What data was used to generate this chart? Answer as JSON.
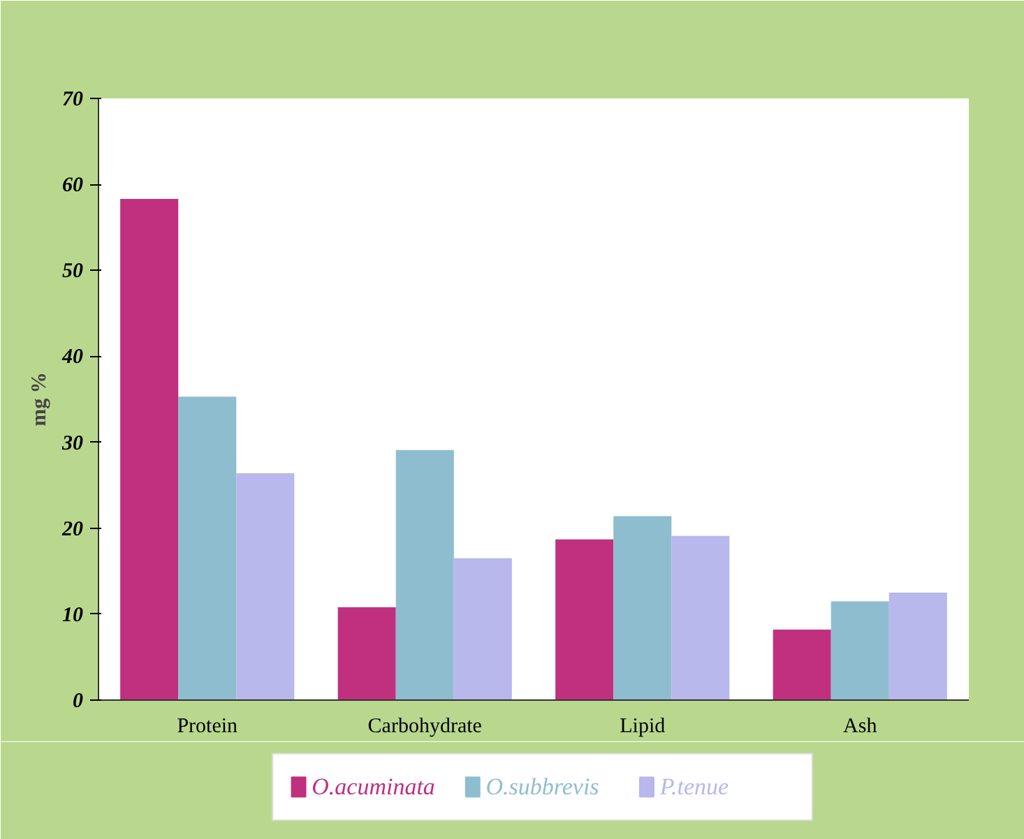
{
  "chart_data": {
    "type": "bar",
    "ylabel": "mg %",
    "categories": [
      "Protein",
      "Carbohydrate",
      "Lipid",
      "Ash"
    ],
    "series": [
      {
        "name": "O.acuminata",
        "color": "#c0307f",
        "values": [
          58.3,
          10.8,
          18.7,
          8.2
        ]
      },
      {
        "name": "O.subbrevis",
        "color": "#8fbdd0",
        "values": [
          35.3,
          29.1,
          21.4,
          11.5
        ]
      },
      {
        "name": "P.tenue",
        "color": "#b8b8ec",
        "values": [
          26.4,
          16.5,
          19.1,
          12.5
        ]
      }
    ],
    "ylim": [
      0,
      70
    ],
    "yticks": [
      0,
      10,
      20,
      30,
      40,
      50,
      60,
      70
    ],
    "grid": false,
    "legend": "bottom"
  }
}
